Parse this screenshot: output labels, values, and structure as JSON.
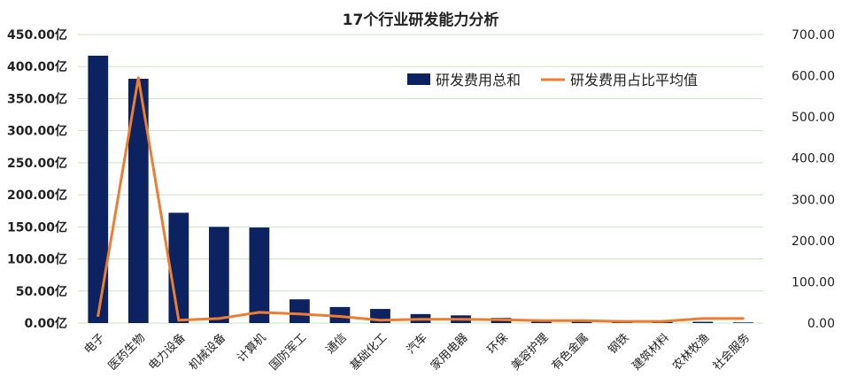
{
  "chart_data": {
    "type": "bar",
    "title": "17个行业研发能力分析",
    "categories": [
      "电子",
      "医药生物",
      "电力设备",
      "机械设备",
      "计算机",
      "国防军工",
      "通信",
      "基础化工",
      "汽车",
      "家用电器",
      "环保",
      "美容护理",
      "有色金属",
      "钢铁",
      "建筑材料",
      "农林牧渔",
      "社会服务"
    ],
    "series": [
      {
        "name": "研发费用总和",
        "type": "bar",
        "axis": "left",
        "color": "#0d2260",
        "values": [
          417,
          381,
          172,
          150,
          149,
          37,
          25,
          22,
          14,
          12,
          8,
          5,
          4,
          3,
          3,
          2,
          1
        ]
      },
      {
        "name": "研发费用占比平均值",
        "type": "line",
        "axis": "right",
        "color": "#ed7d31",
        "values": [
          18,
          595,
          7,
          11,
          26,
          22,
          16,
          7,
          9,
          9,
          8,
          6,
          6,
          4,
          4,
          11,
          11
        ]
      }
    ],
    "y_left": {
      "min": 0,
      "max": 450,
      "step": 50,
      "tick_labels": [
        "0.00亿",
        "50.00亿",
        "100.00亿",
        "150.00亿",
        "200.00亿",
        "250.00亿",
        "300.00亿",
        "350.00亿",
        "400.00亿",
        "450.00亿"
      ]
    },
    "y_right": {
      "min": 0,
      "max": 700,
      "step": 100,
      "tick_labels": [
        "0.00",
        "100.00",
        "200.00",
        "300.00",
        "400.00",
        "500.00",
        "600.00",
        "700.00"
      ]
    },
    "grid": true,
    "legend_position": "top-right"
  }
}
